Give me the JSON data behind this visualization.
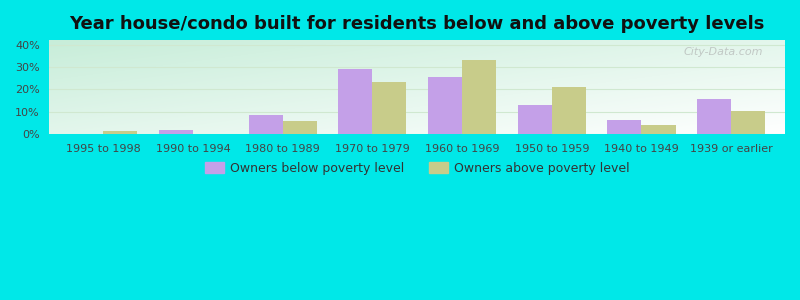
{
  "title": "Year house/condo built for residents below and above poverty levels",
  "categories": [
    "1995 to 1998",
    "1990 to 1994",
    "1980 to 1989",
    "1970 to 1979",
    "1960 to 1969",
    "1950 to 1959",
    "1940 to 1949",
    "1939 or earlier"
  ],
  "below_poverty": [
    0.0,
    2.0,
    8.5,
    29.0,
    25.5,
    13.0,
    6.5,
    15.5
  ],
  "above_poverty": [
    1.5,
    0.0,
    6.0,
    23.5,
    33.0,
    21.0,
    4.0,
    10.5
  ],
  "below_color": "#c4a0e8",
  "above_color": "#c8cc8a",
  "background_color": "#00e8e8",
  "grad_top_left": "#c8eed8",
  "grad_bottom_right": "#f8fff8",
  "ylabel_ticks": [
    "0%",
    "10%",
    "20%",
    "30%",
    "40%"
  ],
  "yticks": [
    0,
    10,
    20,
    30,
    40
  ],
  "ylim": [
    0,
    42
  ],
  "legend_below": "Owners below poverty level",
  "legend_above": "Owners above poverty level",
  "title_fontsize": 13,
  "tick_fontsize": 8,
  "legend_fontsize": 9,
  "bar_width": 0.38,
  "grid_color": "#e0eed8",
  "watermark": "City-Data.com"
}
